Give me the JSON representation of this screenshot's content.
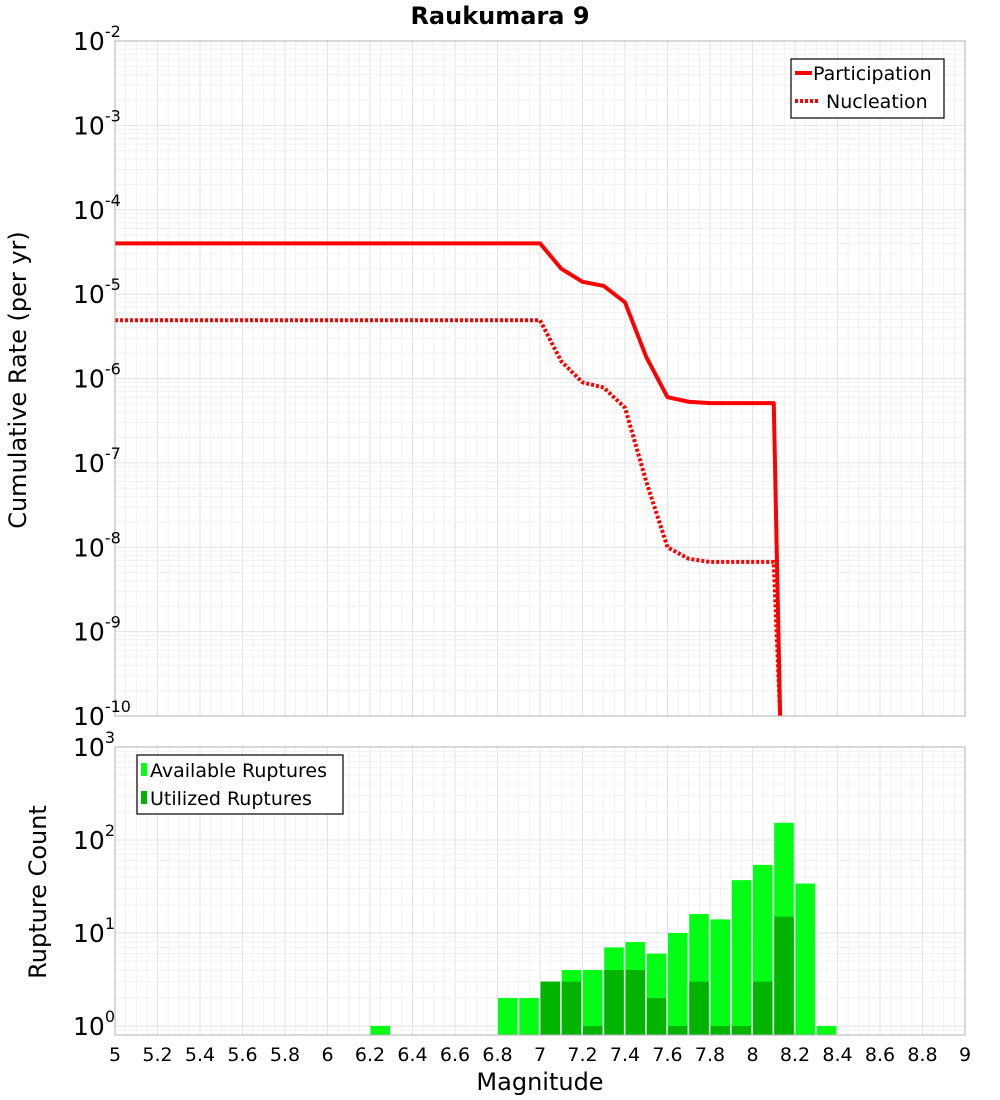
{
  "chart_data": [
    {
      "type": "line",
      "title": "Raukumara 9",
      "ylabel": "Cumulative Rate (per yr)",
      "xlabel": "",
      "xlim": [
        5,
        9
      ],
      "ylim": [
        1e-10,
        0.01
      ],
      "yscale": "log",
      "grid": true,
      "legend": "top-right",
      "y_ticks": [
        {
          "base": "10",
          "exp": "-10",
          "value": 1e-10
        },
        {
          "base": "10",
          "exp": "-9",
          "value": 1e-09
        },
        {
          "base": "10",
          "exp": "-8",
          "value": 1e-08
        },
        {
          "base": "10",
          "exp": "-7",
          "value": 1e-07
        },
        {
          "base": "10",
          "exp": "-6",
          "value": 1e-06
        },
        {
          "base": "10",
          "exp": "-5",
          "value": 1e-05
        },
        {
          "base": "10",
          "exp": "-4",
          "value": 0.0001
        },
        {
          "base": "10",
          "exp": "-3",
          "value": 0.001
        },
        {
          "base": "10",
          "exp": "-2",
          "value": 0.01
        }
      ],
      "series": [
        {
          "name": "Participation",
          "color": "#ff0000",
          "style": "solid",
          "x": [
            5.0,
            7.0,
            7.1,
            7.2,
            7.3,
            7.4,
            7.5,
            7.6,
            7.7,
            7.8,
            7.9,
            8.0,
            8.1,
            8.13
          ],
          "y": [
            4e-05,
            4e-05,
            2e-05,
            1.4e-05,
            1.25e-05,
            8e-06,
            1.8e-06,
            6e-07,
            5.3e-07,
            5.1e-07,
            5.1e-07,
            5.1e-07,
            5.1e-07,
            1e-10
          ]
        },
        {
          "name": "Nucleation",
          "color": "#ff0000",
          "style": "dotted",
          "x": [
            5.0,
            7.0,
            7.1,
            7.2,
            7.3,
            7.4,
            7.5,
            7.6,
            7.7,
            7.8,
            7.9,
            8.0,
            8.1,
            8.13
          ],
          "y": [
            4.9e-06,
            4.9e-06,
            1.6e-06,
            9e-07,
            7.8e-07,
            4.5e-07,
            6e-08,
            1e-08,
            7.3e-09,
            6.7e-09,
            6.7e-09,
            6.7e-09,
            6.7e-09,
            1e-10
          ]
        }
      ]
    },
    {
      "type": "bar",
      "ylabel": "Rupture Count",
      "xlabel": "Magnitude",
      "xlim": [
        5,
        9
      ],
      "ylim": [
        0.8,
        1000
      ],
      "yscale": "log",
      "grid": true,
      "legend": "top-left",
      "bin_width": 0.1,
      "x_ticks": [
        "5",
        "5.2",
        "5.4",
        "5.6",
        "5.8",
        "6",
        "6.2",
        "6.4",
        "6.6",
        "6.8",
        "7",
        "7.2",
        "7.4",
        "7.6",
        "7.8",
        "8",
        "8.2",
        "8.4",
        "8.6",
        "8.8",
        "9"
      ],
      "y_ticks": [
        {
          "base": "10",
          "exp": "0",
          "value": 1
        },
        {
          "base": "10",
          "exp": "1",
          "value": 10
        },
        {
          "base": "10",
          "exp": "2",
          "value": 100
        },
        {
          "base": "10",
          "exp": "3",
          "value": 1000
        }
      ],
      "series": [
        {
          "name": "Available Ruptures",
          "color": "#00ff14",
          "x": [
            6.25,
            6.85,
            6.95,
            7.05,
            7.15,
            7.25,
            7.35,
            7.45,
            7.55,
            7.65,
            7.75,
            7.85,
            7.95,
            8.05,
            8.15,
            8.25,
            8.35
          ],
          "values": [
            1,
            2,
            2,
            3,
            4,
            4,
            7,
            8,
            6,
            10,
            16,
            14,
            37,
            54,
            153,
            34,
            1
          ]
        },
        {
          "name": "Utilized Ruptures",
          "color": "#00b400",
          "x": [
            7.05,
            7.15,
            7.25,
            7.35,
            7.45,
            7.55,
            7.65,
            7.75,
            7.85,
            7.95,
            8.05,
            8.15
          ],
          "values": [
            3,
            3,
            1,
            4,
            4,
            2,
            1,
            3,
            1,
            1,
            3,
            15
          ]
        }
      ]
    }
  ]
}
